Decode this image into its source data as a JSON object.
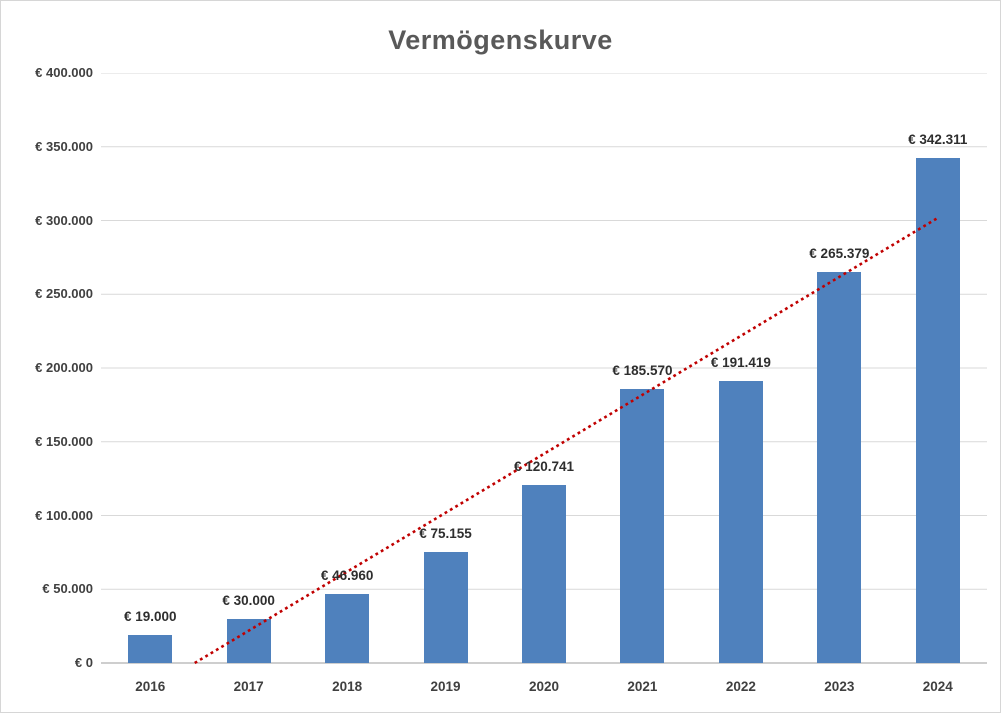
{
  "chart_data": {
    "type": "bar",
    "title": "Vermögenskurve",
    "xlabel": "",
    "ylabel": "",
    "categories": [
      "2016",
      "2017",
      "2018",
      "2019",
      "2020",
      "2021",
      "2022",
      "2023",
      "2024"
    ],
    "values": [
      19000,
      30000,
      46960,
      75155,
      120741,
      185570,
      191419,
      265379,
      342311
    ],
    "data_labels": [
      "€ 19.000",
      "€ 30.000",
      "€ 46.960",
      "€ 75.155",
      "€ 120.741",
      "€ 185.570",
      "€ 191.419",
      "€ 265.379",
      "€ 342.311"
    ],
    "y_ticks": {
      "values": [
        0,
        50000,
        100000,
        150000,
        200000,
        250000,
        300000,
        350000,
        400000
      ],
      "labels": [
        "€ 0",
        "€ 50.000",
        "€ 100.000",
        "€ 150.000",
        "€ 200.000",
        "€ 250.000",
        "€ 300.000",
        "€ 350.000",
        "€ 400.000"
      ]
    },
    "ylim": [
      0,
      400000
    ],
    "grid": "horizontal",
    "legend": "none",
    "bar_color": "#4F81BD",
    "grid_color": "#d9d9d9",
    "axis_line_color": "#9e9e9e",
    "trendline": {
      "type": "linear",
      "style": "dotted",
      "color": "#C00000"
    }
  }
}
